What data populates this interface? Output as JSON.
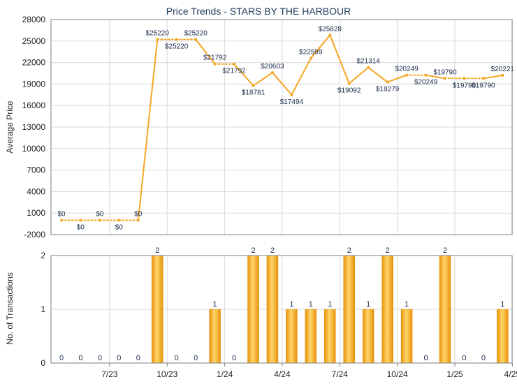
{
  "chart_data": [
    {
      "type": "line",
      "title": "Price Trends - STARS BY THE HARBOUR",
      "ylabel": "Average Price",
      "ylim": [
        -2000,
        28000
      ],
      "yticks": [
        -2000,
        1000,
        4000,
        7000,
        10000,
        13000,
        16000,
        19000,
        22000,
        25000,
        28000
      ],
      "grid": true,
      "line_color": "#F5A623",
      "values": [
        0,
        0,
        0,
        0,
        0,
        25220,
        25220,
        25220,
        21792,
        21792,
        18781,
        20603,
        17494,
        22599,
        25828,
        19092,
        21314,
        19279,
        20249,
        20249,
        19790,
        19790,
        19790,
        20221
      ],
      "point_labels": [
        "$0",
        "$0",
        "$0",
        "$0",
        "$0",
        "$25220",
        "$25220",
        "$25220",
        "$21792",
        "$21792",
        "$18781",
        "$20603",
        "$17494",
        "$22599",
        "$25828",
        "$19092",
        "$21314",
        "$19279",
        "$20249",
        "$20249",
        "$19790",
        "$19790",
        "$19790",
        "$20221"
      ]
    },
    {
      "type": "bar",
      "ylabel": "No. of Transactions",
      "ylim": [
        0,
        2
      ],
      "yticks": [
        0,
        1,
        2
      ],
      "grid": true,
      "bar_color": "#F5A623",
      "values": [
        0,
        0,
        0,
        0,
        0,
        2,
        0,
        0,
        1,
        0,
        2,
        2,
        1,
        1,
        1,
        2,
        1,
        2,
        1,
        0,
        2,
        0,
        0,
        1
      ],
      "x_tick_labels": [
        "7/23",
        "10/23",
        "1/24",
        "4/24",
        "7/24",
        "10/24",
        "1/25",
        "4/25"
      ]
    }
  ]
}
